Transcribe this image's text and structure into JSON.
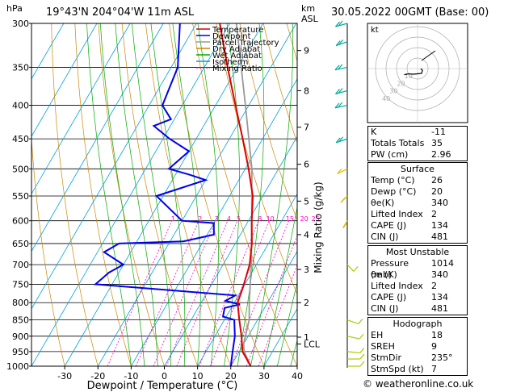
{
  "header": {
    "location": "19°43'N  204°04'W  11m  ASL",
    "datetime": "30.05.2022  00GMT  (Base: 00)",
    "left_unit": "hPa",
    "km_unit": "km",
    "asl_unit": "ASL",
    "mixing_ratio_label": "Mixing Ratio (g/kg)"
  },
  "footer": "© weatheronline.co.uk",
  "chart_data": {
    "type": "skew-t",
    "xlabel": "Dewpoint / Temperature (°C)",
    "pressure_levels": [
      300,
      350,
      400,
      450,
      500,
      550,
      600,
      650,
      700,
      750,
      800,
      850,
      900,
      950,
      1000
    ],
    "x_ticks": [
      -30,
      -20,
      -10,
      0,
      10,
      20,
      30,
      40
    ],
    "xlim": [
      -40,
      40
    ],
    "ylim": [
      1000,
      300
    ],
    "km_ticks": [
      {
        "label": "9",
        "p": 330
      },
      {
        "label": "8",
        "p": 380
      },
      {
        "label": "7",
        "p": 432
      },
      {
        "label": "6",
        "p": 492
      },
      {
        "label": "5",
        "p": 560
      },
      {
        "label": "4",
        "p": 630
      },
      {
        "label": "3",
        "p": 712
      },
      {
        "label": "2",
        "p": 800
      },
      {
        "label": "1",
        "p": 903
      },
      {
        "label": "LCL",
        "p": 925
      }
    ],
    "mixing_ratio_labels": [
      "1",
      "2",
      "3",
      "4",
      "5",
      "8",
      "10",
      "15",
      "20",
      "25"
    ],
    "mixing_ratio_values": [
      1,
      2,
      3,
      4,
      5,
      8,
      10,
      15,
      20,
      25
    ],
    "mixing_ratio_label_p": 594,
    "legend": [
      {
        "name": "Temperature",
        "color": "#dd0000",
        "dash": ""
      },
      {
        "name": "Dewpoint",
        "color": "#0000ee",
        "dash": ""
      },
      {
        "name": "Parcel Trajectory",
        "color": "#999999",
        "dash": ""
      },
      {
        "name": "Dry Adiabat",
        "color": "#cc8800",
        "dash": ""
      },
      {
        "name": "Wet Adiabat",
        "color": "#00aa00",
        "dash": ""
      },
      {
        "name": "Isotherm",
        "color": "#00a0dd",
        "dash": ""
      },
      {
        "name": "Mixing Ratio",
        "color": "#ff00cc",
        "dash": "2,2"
      }
    ],
    "temperature": [
      [
        1000,
        26
      ],
      [
        950,
        21
      ],
      [
        900,
        18
      ],
      [
        850,
        14.5
      ],
      [
        800,
        11
      ],
      [
        760,
        10
      ],
      [
        700,
        8
      ],
      [
        650,
        5
      ],
      [
        600,
        1
      ],
      [
        550,
        -3
      ],
      [
        500,
        -9
      ],
      [
        450,
        -16
      ],
      [
        400,
        -24
      ],
      [
        350,
        -33
      ],
      [
        300,
        -43
      ]
    ],
    "dewpoint": [
      [
        1000,
        20
      ],
      [
        950,
        18
      ],
      [
        900,
        16
      ],
      [
        850,
        13
      ],
      [
        840,
        9
      ],
      [
        815,
        8
      ],
      [
        805,
        12
      ],
      [
        795,
        7
      ],
      [
        780,
        9
      ],
      [
        760,
        -20
      ],
      [
        750,
        -35
      ],
      [
        720,
        -33
      ],
      [
        700,
        -30
      ],
      [
        670,
        -38
      ],
      [
        650,
        -35
      ],
      [
        645,
        -16
      ],
      [
        630,
        -8
      ],
      [
        605,
        -10
      ],
      [
        600,
        -20
      ],
      [
        550,
        -32
      ],
      [
        520,
        -20
      ],
      [
        510,
        -26
      ],
      [
        500,
        -33
      ],
      [
        470,
        -30
      ],
      [
        450,
        -38
      ],
      [
        430,
        -45
      ],
      [
        420,
        -41
      ],
      [
        400,
        -46
      ],
      [
        350,
        -48
      ],
      [
        300,
        -55
      ]
    ],
    "parcel": [
      [
        1000,
        26
      ],
      [
        950,
        21.5
      ],
      [
        925,
        20
      ],
      [
        850,
        17.5
      ],
      [
        800,
        14.5
      ],
      [
        700,
        8.5
      ],
      [
        600,
        1
      ],
      [
        500,
        -8
      ],
      [
        400,
        -21
      ],
      [
        300,
        -38
      ]
    ],
    "winds": [
      {
        "p": 1000,
        "speed": 10,
        "dir": 90
      },
      {
        "p": 975,
        "speed": 10,
        "dir": 90
      },
      {
        "p": 950,
        "speed": 10,
        "dir": 100
      },
      {
        "p": 900,
        "speed": 10,
        "dir": 110
      },
      {
        "p": 850,
        "speed": 10,
        "dir": 120
      },
      {
        "p": 700,
        "speed": 10,
        "dir": 150
      },
      {
        "p": 600,
        "speed": 10,
        "dir": 200
      },
      {
        "p": 550,
        "speed": 10,
        "dir": 210
      },
      {
        "p": 500,
        "speed": 10,
        "dir": 230
      },
      {
        "p": 450,
        "speed": 15,
        "dir": 240
      },
      {
        "p": 400,
        "speed": 15,
        "dir": 250
      },
      {
        "p": 380,
        "speed": 15,
        "dir": 245
      },
      {
        "p": 350,
        "speed": 15,
        "dir": 250
      },
      {
        "p": 320,
        "speed": 15,
        "dir": 240
      },
      {
        "p": 300,
        "speed": 15,
        "dir": 245
      }
    ],
    "hodograph": {
      "label": "kt",
      "rings": [
        "10",
        "20",
        "30",
        "40"
      ],
      "trace": [
        [
          90,
          3
        ],
        [
          110,
          5
        ],
        [
          140,
          6
        ],
        [
          180,
          5
        ],
        [
          220,
          7
        ],
        [
          240,
          10
        ],
        [
          245,
          14
        ]
      ]
    }
  },
  "indices": {
    "rows": [
      {
        "label": "K",
        "value": "-11"
      },
      {
        "label": "Totals Totals",
        "value": "35"
      },
      {
        "label": "PW (cm)",
        "value": "2.96"
      }
    ]
  },
  "surface": {
    "title": "Surface",
    "rows": [
      {
        "label": "Temp (°C)",
        "value": "26"
      },
      {
        "label": "Dewp (°C)",
        "value": "20"
      },
      {
        "label": "θe(K)",
        "value": "340"
      },
      {
        "label": "Lifted Index",
        "value": "2"
      },
      {
        "label": "CAPE (J)",
        "value": "134"
      },
      {
        "label": "CIN (J)",
        "value": "481"
      }
    ]
  },
  "most_unstable": {
    "title": "Most Unstable",
    "rows": [
      {
        "label": "Pressure (mb)",
        "value": "1014"
      },
      {
        "label": "θe (K)",
        "value": "340"
      },
      {
        "label": "Lifted Index",
        "value": "2"
      },
      {
        "label": "CAPE (J)",
        "value": "134"
      },
      {
        "label": "CIN (J)",
        "value": "481"
      }
    ]
  },
  "hodograph_table": {
    "title": "Hodograph",
    "rows": [
      {
        "label": "EH",
        "value": "18"
      },
      {
        "label": "SREH",
        "value": "9"
      },
      {
        "label": "StmDir",
        "value": "235°"
      },
      {
        "label": "StmSpd (kt)",
        "value": "7"
      }
    ]
  }
}
